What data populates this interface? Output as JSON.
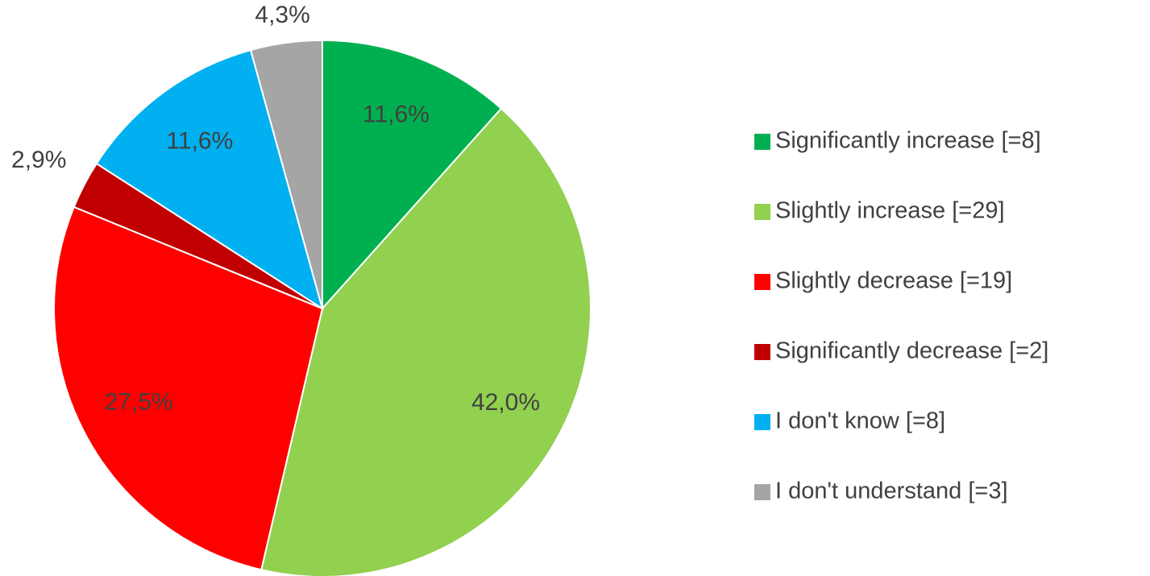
{
  "chart_data": {
    "type": "pie",
    "categories": [
      "Significantly increase [=8]",
      "Slightly increase [=29]",
      "Slightly decrease [=19]",
      "Significantly decrease [=2]",
      "I don't know [=8]",
      "I don't understand [=3]"
    ],
    "values": [
      11.6,
      42.0,
      27.5,
      2.9,
      11.6,
      4.3
    ],
    "value_labels": [
      "11,6%",
      "42,0%",
      "27,5%",
      "2,9%",
      "11,6%",
      "4,3%"
    ],
    "colors": [
      "#00b050",
      "#92d050",
      "#ff0000",
      "#c00000",
      "#00b0f0",
      "#a5a5a5"
    ],
    "legend": "right"
  }
}
